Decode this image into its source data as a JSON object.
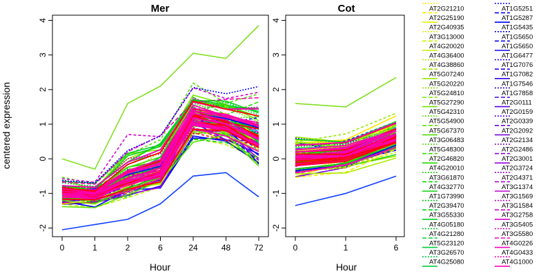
{
  "chart_data": [
    {
      "type": "line",
      "title": "Mer",
      "xlabel": "Hour",
      "ylabel": "centered expression",
      "x_ticks": [
        "0",
        "1",
        "2",
        "6",
        "24",
        "48",
        "72"
      ],
      "ylim": [
        -2,
        4
      ],
      "y_ticks": [
        -2,
        -1,
        0,
        1,
        2,
        3,
        4
      ],
      "grid": false,
      "envelope_mean": [
        -1.0,
        -1.05,
        -0.65,
        -0.4,
        1.2,
        1.0,
        0.55
      ],
      "envelope_upper": [
        0.0,
        -0.3,
        1.6,
        2.1,
        3.05,
        2.9,
        3.85
      ],
      "envelope_lower": [
        -2.05,
        -1.9,
        -1.75,
        -1.3,
        -0.5,
        -0.4,
        -1.1
      ]
    },
    {
      "type": "line",
      "title": "Cot",
      "xlabel": "Hour",
      "ylabel": "",
      "x_ticks": [
        "0",
        "1",
        "6"
      ],
      "ylim": [
        -2,
        4
      ],
      "y_ticks": [
        -2,
        -1,
        0,
        1,
        2,
        3,
        4
      ],
      "grid": false,
      "envelope_mean": [
        0.0,
        0.1,
        0.6
      ],
      "envelope_upper": [
        1.6,
        1.5,
        2.35
      ],
      "envelope_lower": [
        -1.35,
        -1.0,
        -0.5
      ]
    }
  ],
  "legend": {
    "col1": [
      "AT2G21210",
      "AT2G25190",
      "AT2G40935",
      "AT3G13000",
      "AT4G20020",
      "AT4G36400",
      "AT4G38860",
      "AT5G07240",
      "AT5G20220",
      "AT5G24810",
      "AT5G27290",
      "AT5G42310",
      "AT5G54900",
      "AT5G67370",
      "AT3G06483",
      "AT5G48300",
      "AT2G46820",
      "AT4G20010",
      "AT3G61870",
      "AT4G32770",
      "AT1G73990",
      "AT2G39470",
      "AT3G55330",
      "AT4G05180",
      "AT4G21280",
      "AT5G23120",
      "AT3G26570",
      "AT4G25080"
    ],
    "col2": [
      "AT1G5251",
      "AT1G5287",
      "AT1G5435",
      "AT1G5650",
      "AT1G5650",
      "AT1G6477",
      "AT1G7076",
      "AT1G7082",
      "AT1G7546",
      "AT1G7858",
      "AT2G0111",
      "AT2G0159",
      "AT2G0339",
      "AT2G2092",
      "AT2G2134",
      "AT2G2486",
      "AT2G3001",
      "AT2G3724",
      "AT2G4371",
      "AT3G1374",
      "AT3G1569",
      "AT3G1584",
      "AT3G2758",
      "AT3G5405",
      "AT3G5580",
      "AT4G0226",
      "AT4G0433",
      "AT4G1000"
    ],
    "col1_colors": [
      "#FFE500",
      "#F5EB00",
      "#E6F000",
      "#D9F200",
      "#CCF000",
      "#BFEE00",
      "#AEEB00",
      "#A0EA00",
      "#94EA00",
      "#86E800",
      "#7AE600",
      "#6EE400",
      "#62E200",
      "#56E000",
      "#4ADE00",
      "#3EDC00",
      "#32DA00",
      "#26D800",
      "#1AD600",
      "#10D400",
      "#06D208",
      "#00D010",
      "#00D018",
      "#00CF20",
      "#00CE28",
      "#00CD30",
      "#00CC38",
      "#00CB40"
    ],
    "col2_colors": [
      "#0000FF",
      "#0000FF",
      "#0000FF",
      "#0000F5",
      "#0000F0",
      "#1000F0",
      "#2000EE",
      "#2800EC",
      "#3000EA",
      "#3800E8",
      "#4400E6",
      "#5000E4",
      "#5C00E2",
      "#6800E0",
      "#7400DE",
      "#8000DC",
      "#8C00DA",
      "#9800D8",
      "#A400D6",
      "#B000D4",
      "#BC00D2",
      "#C800D0",
      "#D400CE",
      "#E000CC",
      "#E800C8",
      "#F000C4",
      "#F800C0",
      "#FF00BC"
    ]
  }
}
